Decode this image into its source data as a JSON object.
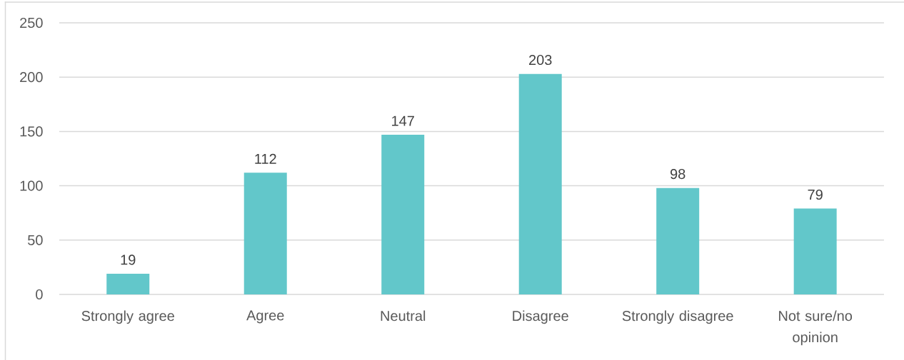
{
  "chart_data": {
    "type": "bar",
    "categories": [
      "Strongly agree",
      "Agree",
      "Neutral",
      "Disagree",
      "Strongly disagree",
      "Not sure/no opinion"
    ],
    "values": [
      19,
      112,
      147,
      203,
      98,
      79
    ],
    "color": "#62c7ca",
    "ylim": [
      0,
      250
    ],
    "yticks": [
      0,
      50,
      100,
      150,
      200,
      250
    ],
    "grid": "y",
    "data_labels": true
  }
}
